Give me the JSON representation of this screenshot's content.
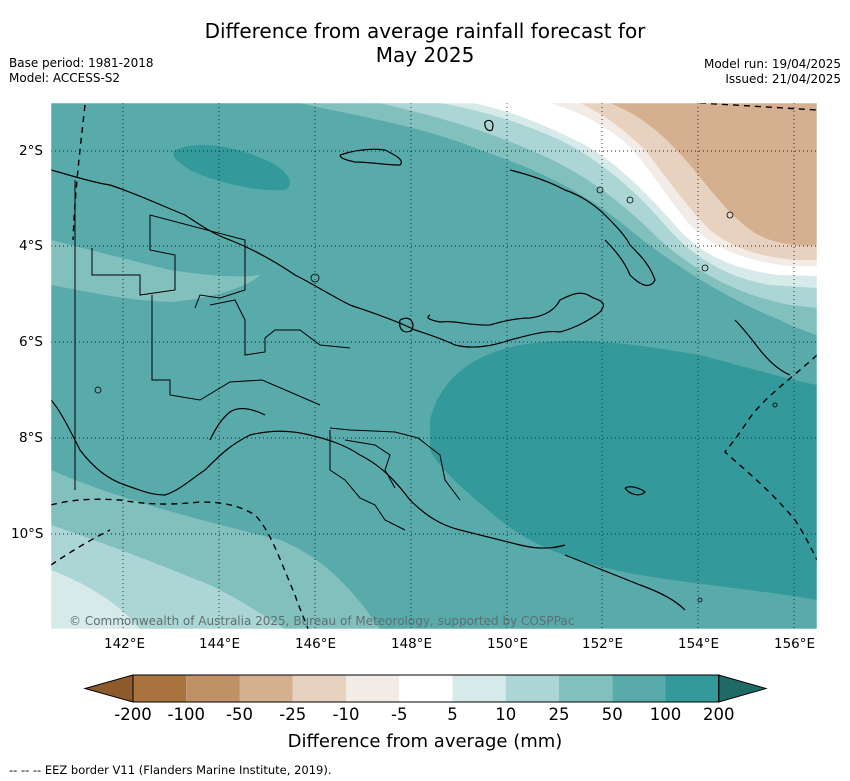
{
  "title_line1": "Difference from average rainfall forecast for",
  "title_line2": "May 2025",
  "base_period": "Base period: 1981-2018",
  "model": "Model: ACCESS-S2",
  "model_run": "Model run: 19/04/2025",
  "issued": "Issued: 21/04/2025",
  "credit": "© Commonwealth of Australia 2025, Bureau of Meteorology, supported by COSPPac",
  "longitude_ticks": [
    "142°E",
    "144°E",
    "146°E",
    "148°E",
    "150°E",
    "152°E",
    "154°E",
    "156°E"
  ],
  "latitude_ticks": [
    "2°S",
    "4°S",
    "6°S",
    "8°S",
    "10°S"
  ],
  "colorbar": {
    "title": "Difference from average (mm)",
    "tick_labels": [
      "-200",
      "-100",
      "-50",
      "-25",
      "-10",
      "-5",
      "5",
      "10",
      "25",
      "50",
      "100",
      "200"
    ],
    "colors": [
      "#a97340",
      "#c09066",
      "#d4b090",
      "#e7d1bf",
      "#f2ebe6",
      "#ffffff",
      "#d6eae9",
      "#acd6d5",
      "#82c0be",
      "#58abaa",
      "#34999a",
      "#2a7876"
    ],
    "extend_low_color": "#8c5a2b",
    "extend_high_color": "#1f6a66"
  },
  "footnote": "--  --  -- EEZ border V11 (Flanders Marine Institute, 2019)."
}
